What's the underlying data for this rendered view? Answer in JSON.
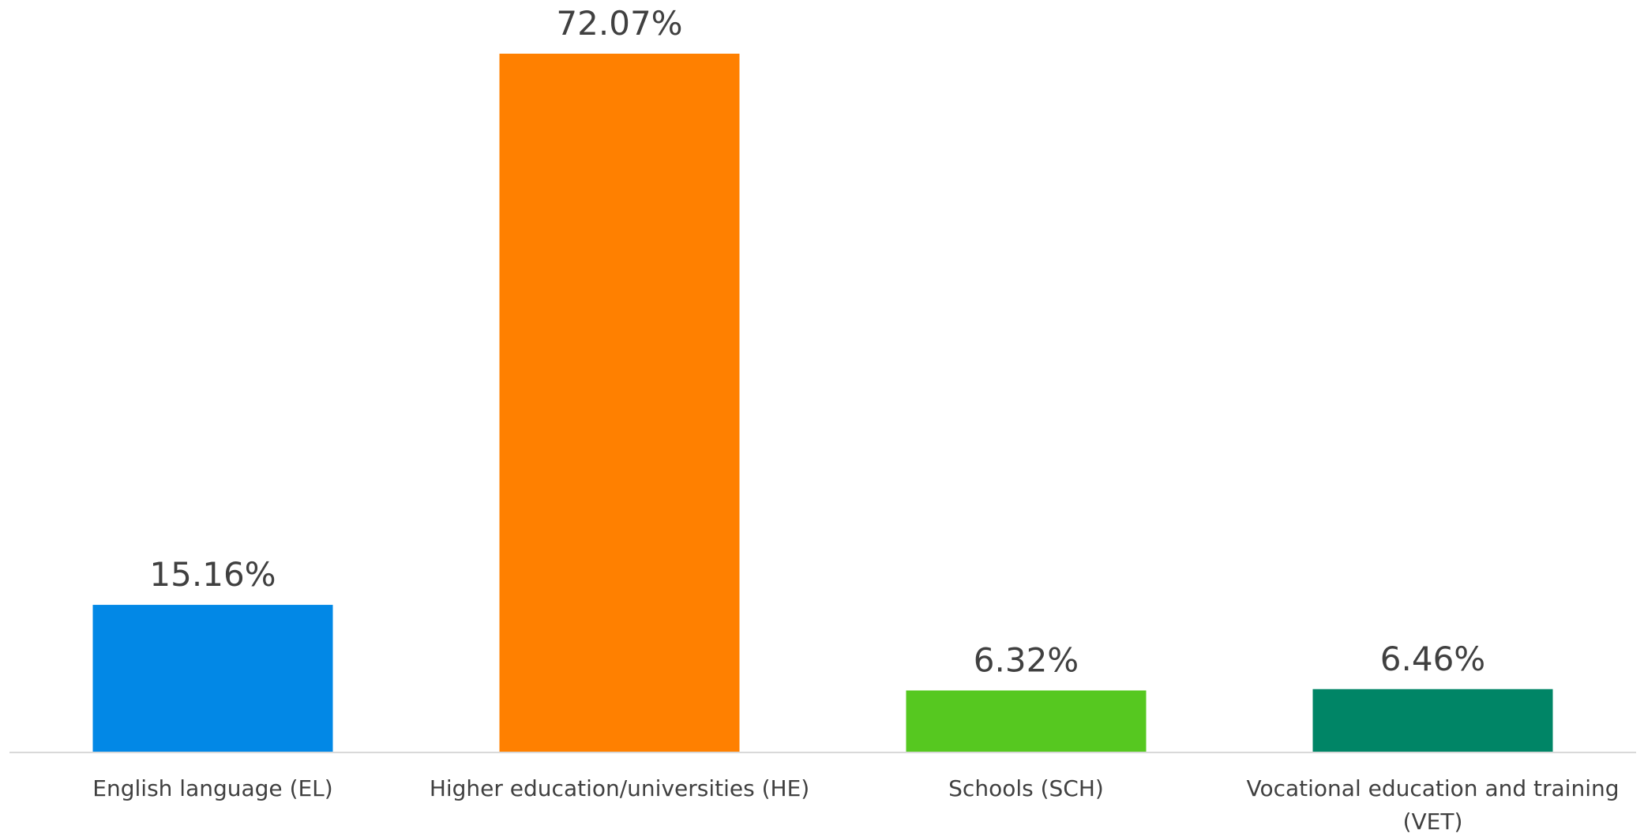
{
  "chart_data": {
    "type": "bar",
    "categories": [
      [
        "English language (EL)"
      ],
      [
        "Higher education/universities (HE)"
      ],
      [
        "Schools (SCH)"
      ],
      [
        "Vocational education and training",
        "(VET)"
      ]
    ],
    "values": [
      15.16,
      72.07,
      6.32,
      6.46
    ],
    "value_labels": [
      "15.16%",
      "72.07%",
      "6.32%",
      "6.46%"
    ],
    "colors": [
      "#0288E6",
      "#FF8000",
      "#56C820",
      "#008566"
    ],
    "axis_color": "#D9D9D9",
    "ylim": [
      0,
      72.07
    ],
    "grid": false,
    "legend": "none"
  }
}
